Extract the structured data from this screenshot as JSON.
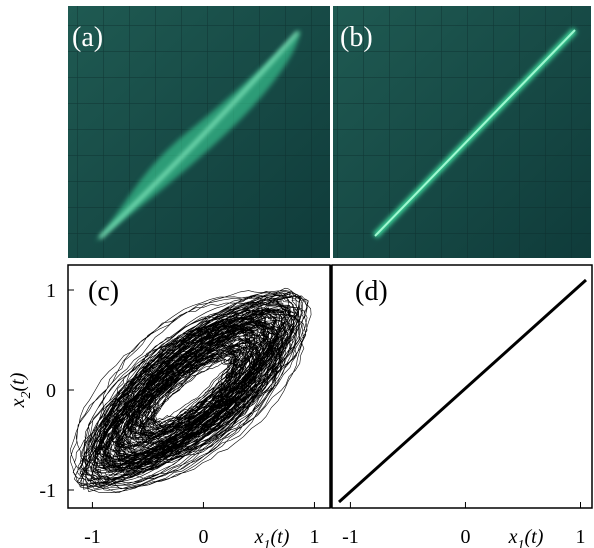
{
  "panels": [
    {
      "label": "(a)"
    },
    {
      "label": "(b)"
    },
    {
      "label": "(c)",
      "xlim": [
        -1.22,
        1.14
      ],
      "ylim": [
        -1.18,
        1.25
      ],
      "xticks": [
        -1,
        0,
        1
      ],
      "yticks": [
        -1,
        0,
        1
      ],
      "xlabel": {
        "base": "x",
        "sub": "1",
        "rest": "(t)"
      },
      "ylabel": {
        "base": "x",
        "sub": "2",
        "rest": "(t)"
      }
    },
    {
      "label": "(d)",
      "xlim": [
        -1.16,
        1.1
      ],
      "ylim": [
        -1.18,
        1.25
      ],
      "xticks": [
        -1,
        0,
        1
      ],
      "xlabel": {
        "base": "x",
        "sub": "1",
        "rest": "(t)"
      }
    }
  ]
}
